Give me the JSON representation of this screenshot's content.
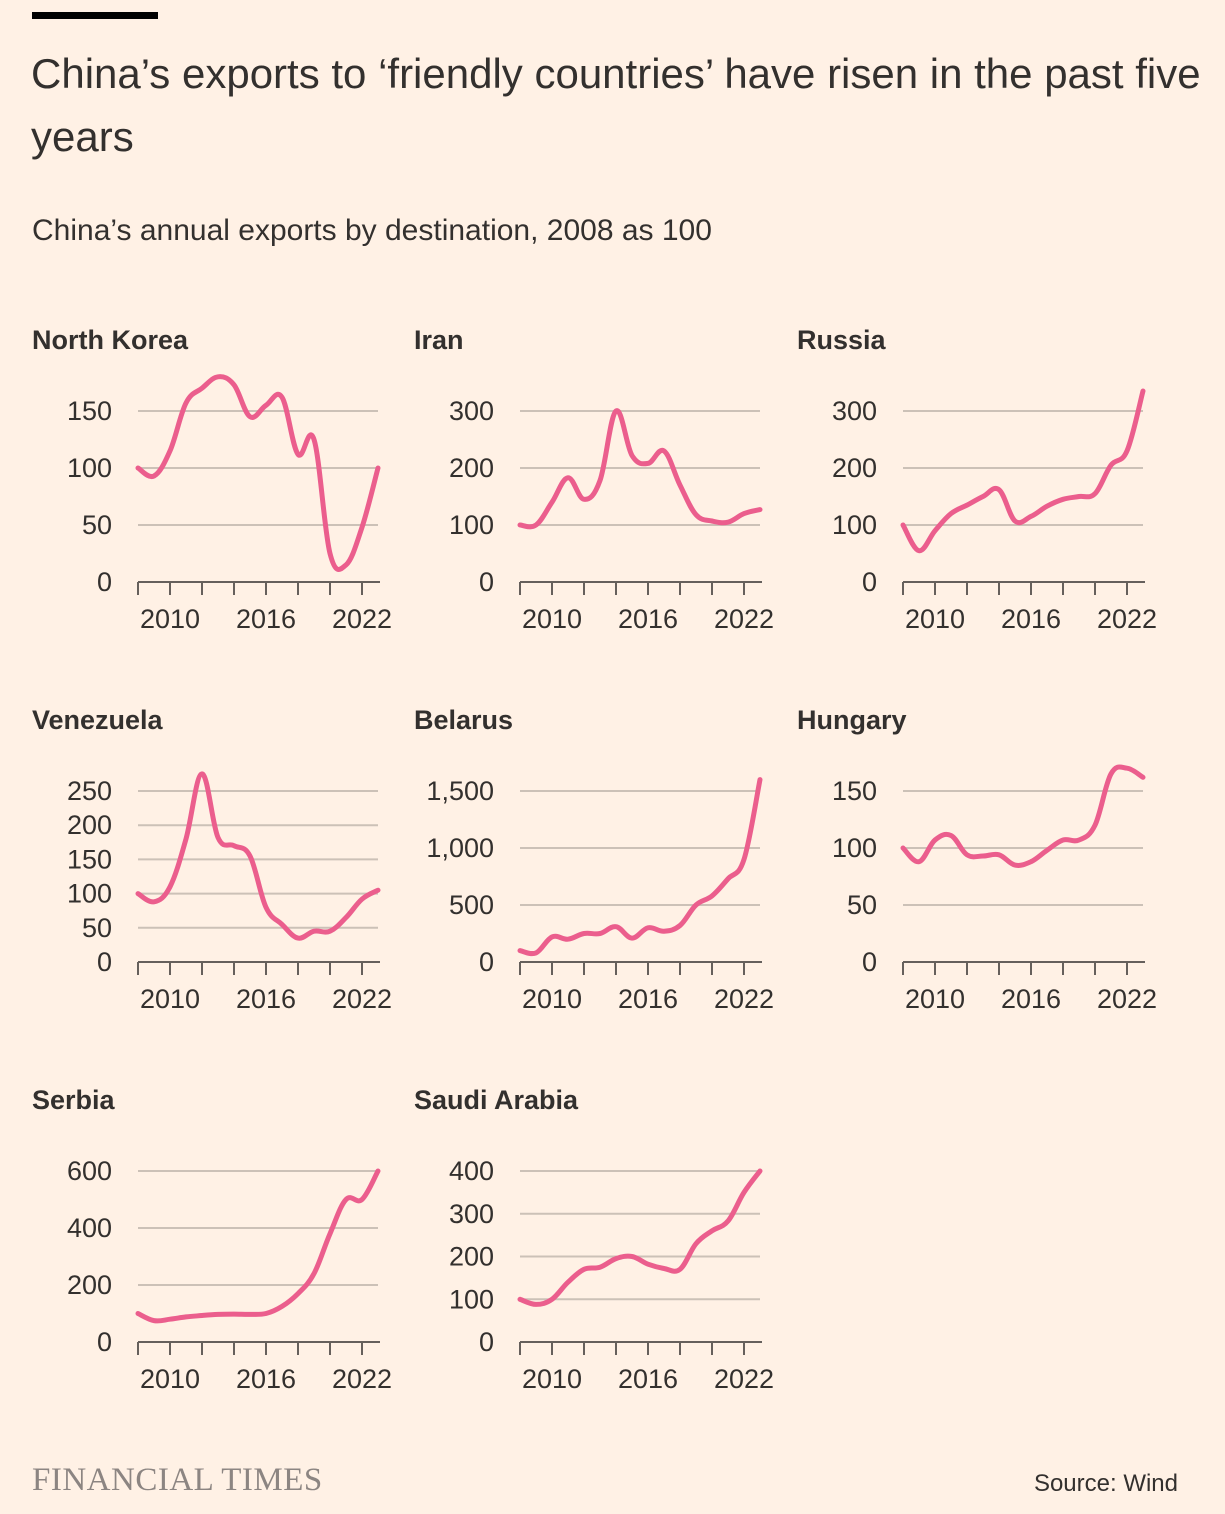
{
  "title": "China’s exports to ‘friendly countries’ have risen in the past five years",
  "subtitle": "China’s annual exports by destination, 2008 as 100",
  "logo": "FINANCIAL TIMES",
  "source": "Source: Wind",
  "colors": {
    "background": "#FFF1E5",
    "line": "#EB5E8D",
    "grid": "#CCC1B7",
    "axis": "#66605C",
    "text": "#33302E"
  },
  "chart_data": [
    {
      "type": "line",
      "title": "North Korea",
      "x": [
        2008,
        2009,
        2010,
        2011,
        2012,
        2013,
        2014,
        2015,
        2016,
        2017,
        2018,
        2019,
        2020,
        2021,
        2022,
        2023
      ],
      "series": [
        {
          "values": [
            100,
            93,
            115,
            157,
            170,
            180,
            173,
            145,
            155,
            162,
            112,
            125,
            25,
            15,
            48,
            100
          ]
        }
      ],
      "ylim": [
        0,
        150
      ],
      "yticks": [
        0,
        50,
        100,
        150
      ],
      "ytick_labels": [
        "0",
        "50",
        "100",
        "150"
      ],
      "xlim": [
        2008,
        2023
      ],
      "xticks": [
        2010,
        2016,
        2022
      ],
      "xtick_labels": [
        "2010",
        "2016",
        "2022"
      ]
    },
    {
      "type": "line",
      "title": "Iran",
      "x": [
        2008,
        2009,
        2010,
        2011,
        2012,
        2013,
        2014,
        2015,
        2016,
        2017,
        2018,
        2019,
        2020,
        2021,
        2022,
        2023
      ],
      "series": [
        {
          "values": [
            100,
            100,
            140,
            183,
            145,
            178,
            300,
            222,
            208,
            230,
            170,
            118,
            107,
            105,
            120,
            127
          ]
        }
      ],
      "ylim": [
        0,
        300
      ],
      "yticks": [
        0,
        100,
        200,
        300
      ],
      "ytick_labels": [
        "0",
        "100",
        "200",
        "300"
      ],
      "xlim": [
        2008,
        2023
      ],
      "xticks": [
        2010,
        2016,
        2022
      ],
      "xtick_labels": [
        "2010",
        "2016",
        "2022"
      ]
    },
    {
      "type": "line",
      "title": "Russia",
      "x": [
        2008,
        2009,
        2010,
        2011,
        2012,
        2013,
        2014,
        2015,
        2016,
        2017,
        2018,
        2019,
        2020,
        2021,
        2022,
        2023
      ],
      "series": [
        {
          "values": [
            100,
            55,
            90,
            120,
            135,
            150,
            162,
            107,
            115,
            133,
            145,
            150,
            155,
            205,
            230,
            335
          ]
        }
      ],
      "ylim": [
        0,
        300
      ],
      "yticks": [
        0,
        100,
        200,
        300
      ],
      "ytick_labels": [
        "0",
        "100",
        "200",
        "300"
      ],
      "xlim": [
        2008,
        2023
      ],
      "xticks": [
        2010,
        2016,
        2022
      ],
      "xtick_labels": [
        "2010",
        "2016",
        "2022"
      ]
    },
    {
      "type": "line",
      "title": "Venezuela",
      "x": [
        2008,
        2009,
        2010,
        2011,
        2012,
        2013,
        2014,
        2015,
        2016,
        2017,
        2018,
        2019,
        2020,
        2021,
        2022,
        2023
      ],
      "series": [
        {
          "values": [
            100,
            88,
            110,
            180,
            275,
            182,
            170,
            155,
            80,
            55,
            35,
            45,
            45,
            65,
            92,
            105
          ]
        }
      ],
      "ylim": [
        0,
        250
      ],
      "yticks": [
        0,
        50,
        100,
        150,
        200,
        250
      ],
      "ytick_labels": [
        "0",
        "50",
        "100",
        "150",
        "200",
        "250"
      ],
      "xlim": [
        2008,
        2023
      ],
      "xticks": [
        2010,
        2016,
        2022
      ],
      "xtick_labels": [
        "2010",
        "2016",
        "2022"
      ]
    },
    {
      "type": "line",
      "title": "Belarus",
      "x": [
        2008,
        2009,
        2010,
        2011,
        2012,
        2013,
        2014,
        2015,
        2016,
        2017,
        2018,
        2019,
        2020,
        2021,
        2022,
        2023
      ],
      "series": [
        {
          "values": [
            100,
            80,
            220,
            200,
            250,
            250,
            310,
            210,
            300,
            270,
            320,
            500,
            580,
            730,
            900,
            1600
          ]
        }
      ],
      "ylim": [
        0,
        1500
      ],
      "yticks": [
        0,
        500,
        1000,
        1500
      ],
      "ytick_labels": [
        "0",
        "500",
        "1,000",
        "1,500"
      ],
      "xlim": [
        2008,
        2023
      ],
      "xticks": [
        2010,
        2016,
        2022
      ],
      "xtick_labels": [
        "2010",
        "2016",
        "2022"
      ]
    },
    {
      "type": "line",
      "title": "Hungary",
      "x": [
        2008,
        2009,
        2010,
        2011,
        2012,
        2013,
        2014,
        2015,
        2016,
        2017,
        2018,
        2019,
        2020,
        2021,
        2022,
        2023
      ],
      "series": [
        {
          "values": [
            100,
            88,
            107,
            111,
            94,
            93,
            94,
            85,
            88,
            98,
            107,
            107,
            120,
            165,
            170,
            162
          ]
        }
      ],
      "ylim": [
        0,
        150
      ],
      "yticks": [
        0,
        50,
        100,
        150
      ],
      "ytick_labels": [
        "0",
        "50",
        "100",
        "150"
      ],
      "xlim": [
        2008,
        2023
      ],
      "xticks": [
        2010,
        2016,
        2022
      ],
      "xtick_labels": [
        "2010",
        "2016",
        "2022"
      ]
    },
    {
      "type": "line",
      "title": "Serbia",
      "x": [
        2008,
        2009,
        2010,
        2011,
        2012,
        2013,
        2014,
        2015,
        2016,
        2017,
        2018,
        2019,
        2020,
        2021,
        2022,
        2023
      ],
      "series": [
        {
          "values": [
            100,
            75,
            80,
            88,
            93,
            97,
            98,
            97,
            100,
            125,
            170,
            240,
            380,
            500,
            500,
            600
          ]
        }
      ],
      "ylim": [
        0,
        600
      ],
      "yticks": [
        0,
        200,
        400,
        600
      ],
      "ytick_labels": [
        "0",
        "200",
        "400",
        "600"
      ],
      "xlim": [
        2008,
        2023
      ],
      "xticks": [
        2010,
        2016,
        2022
      ],
      "xtick_labels": [
        "2010",
        "2016",
        "2022"
      ]
    },
    {
      "type": "line",
      "title": "Saudi Arabia",
      "x": [
        2008,
        2009,
        2010,
        2011,
        2012,
        2013,
        2014,
        2015,
        2016,
        2017,
        2018,
        2019,
        2020,
        2021,
        2022,
        2023
      ],
      "series": [
        {
          "values": [
            100,
            88,
            100,
            140,
            170,
            175,
            195,
            200,
            182,
            172,
            170,
            230,
            260,
            283,
            350,
            400
          ]
        }
      ],
      "ylim": [
        0,
        400
      ],
      "yticks": [
        0,
        100,
        200,
        300,
        400
      ],
      "ytick_labels": [
        "0",
        "100",
        "200",
        "300",
        "400"
      ],
      "xlim": [
        2008,
        2023
      ],
      "xticks": [
        2010,
        2016,
        2022
      ],
      "xtick_labels": [
        "2010",
        "2016",
        "2022"
      ]
    }
  ]
}
